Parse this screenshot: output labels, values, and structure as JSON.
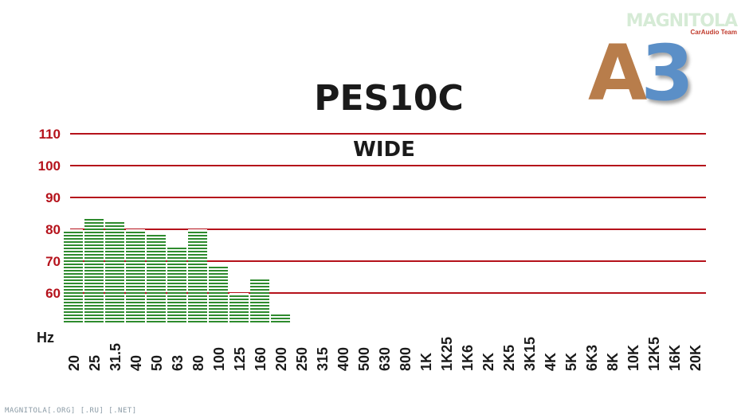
{
  "brand": {
    "name": "MAGNITOLA",
    "sub": "CarAudio Team",
    "badge_a": "A",
    "badge_3": "3"
  },
  "footer": "MAGNITOLA[.ORG] [.RU] [.NET]",
  "colors": {
    "bars": "#2e8b2e",
    "grid": "#b5121b",
    "ytick": "#b5121b",
    "badge_a": "#b87d4b",
    "badge_3": "#5b8fc7"
  },
  "chart_data": {
    "type": "bar",
    "title": "PES10C",
    "subtitle": "WIDE",
    "xlabel": "Hz",
    "ylabel": "",
    "ylim": [
      50,
      110
    ],
    "yticks": [
      60,
      70,
      80,
      90,
      100,
      110
    ],
    "grid": true,
    "categories": [
      "20",
      "25",
      "31.5",
      "40",
      "50",
      "63",
      "80",
      "100",
      "125",
      "160",
      "200",
      "250",
      "315",
      "400",
      "500",
      "630",
      "800",
      "1K",
      "1K25",
      "1K6",
      "2K",
      "2K5",
      "3K15",
      "4K",
      "5K",
      "6K3",
      "8K",
      "10K",
      "12K5",
      "16K",
      "20K"
    ],
    "values": [
      80,
      84,
      83,
      80,
      79,
      75,
      80,
      69,
      60,
      65,
      54,
      null,
      null,
      null,
      null,
      null,
      null,
      null,
      null,
      null,
      null,
      null,
      null,
      null,
      null,
      null,
      null,
      null,
      null,
      null,
      null
    ]
  }
}
